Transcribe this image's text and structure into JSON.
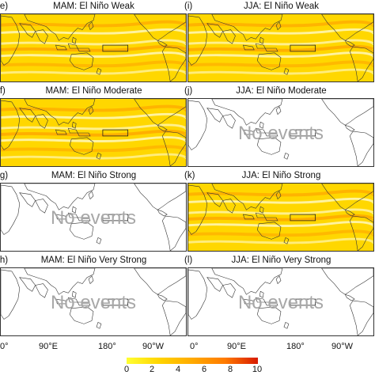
{
  "panels": [
    {
      "label": "(e)",
      "title": "MAM: El Niño Weak",
      "events": true
    },
    {
      "label": "(i)",
      "title": "JJA: El Niño Weak",
      "events": true
    },
    {
      "label": "(f)",
      "title": "MAM: El Niño Moderate",
      "events": true
    },
    {
      "label": "(j)",
      "title": "JJA: El Niño Moderate",
      "events": false
    },
    {
      "label": "(g)",
      "title": "MAM: El Niño Strong",
      "events": false
    },
    {
      "label": "(k)",
      "title": "JJA: El Niño Strong",
      "events": true
    },
    {
      "label": "(h)",
      "title": "MAM: El Niño Very Strong",
      "events": false
    },
    {
      "label": "(l)",
      "title": "JJA: El Niño Very Strong",
      "events": false
    }
  ],
  "no_events_text": "No events",
  "x_axis_labels": {
    "left": [
      "0°",
      "90°E",
      "180°",
      "90°W"
    ],
    "right": [
      "0°",
      "90°E",
      "180°",
      "90°W"
    ]
  },
  "colorbar": {
    "ticks": [
      "0",
      "2",
      "4",
      "6",
      "8",
      "10"
    ],
    "colors": [
      "#ffff33",
      "#ffd400",
      "#ffaa00",
      "#ff7a00",
      "#f04a00",
      "#d81a00"
    ]
  },
  "colors": {
    "field_base": "#ffd700",
    "field_high": "#fff6b0",
    "field_low": "#ffa500",
    "coastline": "#333333",
    "no_events": "#a8a8a8"
  }
}
